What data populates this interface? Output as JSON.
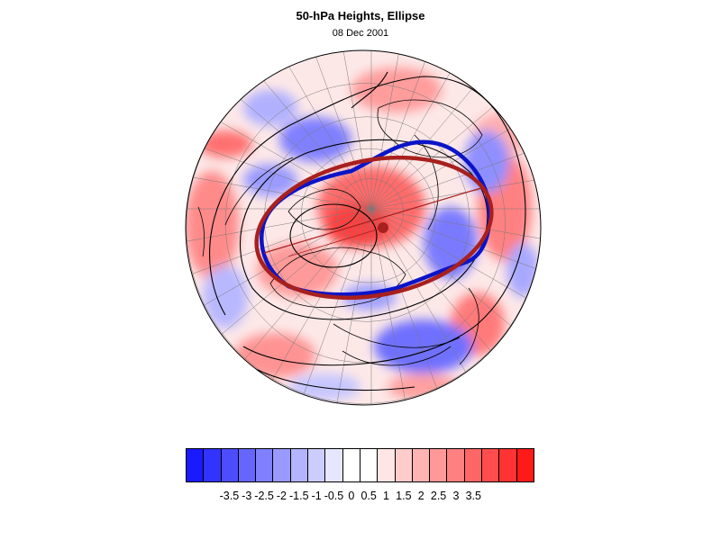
{
  "title": "50-hPa Heights, Ellipse",
  "subtitle": "08 Dec 2001",
  "colorbar": {
    "colors": [
      "#1a1aff",
      "#3333ff",
      "#4d4dff",
      "#6666ff",
      "#8080ff",
      "#9999ff",
      "#b3b3ff",
      "#ccccff",
      "#e6e6ff",
      "#ffffff",
      "#ffffff",
      "#ffe6e6",
      "#ffcccc",
      "#ffb3b3",
      "#ff9999",
      "#ff8080",
      "#ff6666",
      "#ff4d4d",
      "#ff3333",
      "#ff1a1a"
    ],
    "tick_labels": [
      "-3.5",
      "-3",
      "-2.5",
      "-2",
      "-1.5",
      "-1",
      "-0.5",
      "0",
      "0.5",
      "1",
      "1.5",
      "2",
      "2.5",
      "3",
      "3.5"
    ]
  },
  "map": {
    "projection": "north-polar-stereographic",
    "field": "50-hPa height anomaly",
    "observed_vortex_color": "#0a14c8",
    "fitted_ellipse_color": "#a8201e",
    "contour_color": "#000000"
  }
}
